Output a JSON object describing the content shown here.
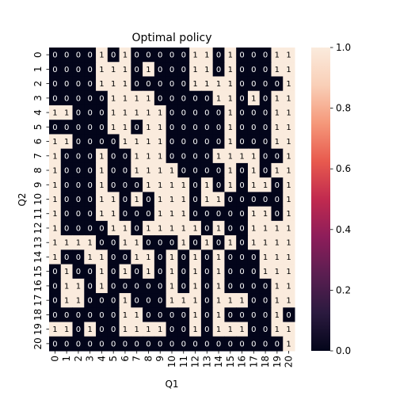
{
  "chart_data": {
    "type": "heatmap",
    "title": "Optimal policy",
    "xlabel": "Q1",
    "ylabel": "Q2",
    "x_categories": [
      "0",
      "1",
      "2",
      "3",
      "4",
      "5",
      "6",
      "7",
      "8",
      "9",
      "10",
      "11",
      "12",
      "13",
      "14",
      "15",
      "16",
      "17",
      "18",
      "19",
      "20"
    ],
    "y_categories": [
      "0",
      "1",
      "2",
      "3",
      "4",
      "5",
      "6",
      "7",
      "8",
      "9",
      "10",
      "11",
      "12",
      "13",
      "14",
      "15",
      "16",
      "17",
      "18",
      "19",
      "20"
    ],
    "annotated": true,
    "values": [
      [
        0,
        0,
        0,
        0,
        1,
        0,
        1,
        0,
        0,
        0,
        0,
        0,
        1,
        1,
        0,
        1,
        0,
        0,
        0,
        1,
        1
      ],
      [
        0,
        0,
        0,
        0,
        1,
        1,
        1,
        0,
        1,
        0,
        0,
        0,
        1,
        1,
        0,
        1,
        0,
        0,
        0,
        1,
        1
      ],
      [
        0,
        0,
        0,
        0,
        1,
        1,
        1,
        0,
        0,
        0,
        0,
        0,
        1,
        1,
        1,
        1,
        0,
        0,
        0,
        0,
        1
      ],
      [
        0,
        0,
        0,
        0,
        0,
        1,
        1,
        1,
        1,
        0,
        0,
        0,
        0,
        0,
        1,
        1,
        0,
        1,
        0,
        1,
        1
      ],
      [
        1,
        1,
        0,
        0,
        0,
        1,
        1,
        1,
        1,
        1,
        0,
        0,
        0,
        0,
        0,
        1,
        0,
        0,
        0,
        1,
        1
      ],
      [
        0,
        0,
        0,
        0,
        0,
        1,
        1,
        0,
        1,
        1,
        0,
        0,
        0,
        0,
        0,
        1,
        0,
        0,
        0,
        1,
        1
      ],
      [
        1,
        1,
        0,
        0,
        0,
        0,
        1,
        1,
        1,
        1,
        0,
        0,
        0,
        0,
        0,
        1,
        0,
        0,
        0,
        1,
        1
      ],
      [
        1,
        0,
        0,
        0,
        1,
        0,
        0,
        1,
        1,
        1,
        0,
        0,
        0,
        0,
        1,
        1,
        1,
        1,
        0,
        0,
        1
      ],
      [
        1,
        0,
        0,
        0,
        1,
        0,
        0,
        1,
        1,
        1,
        1,
        0,
        0,
        0,
        0,
        1,
        0,
        1,
        0,
        1,
        1
      ],
      [
        1,
        0,
        0,
        0,
        1,
        0,
        0,
        0,
        1,
        1,
        1,
        1,
        0,
        1,
        0,
        1,
        0,
        1,
        1,
        0,
        1
      ],
      [
        1,
        0,
        0,
        0,
        1,
        1,
        0,
        1,
        0,
        1,
        1,
        1,
        0,
        1,
        1,
        0,
        0,
        0,
        0,
        0,
        1
      ],
      [
        1,
        0,
        0,
        0,
        1,
        1,
        0,
        0,
        0,
        1,
        1,
        1,
        0,
        0,
        0,
        0,
        0,
        1,
        1,
        0,
        1
      ],
      [
        1,
        0,
        0,
        0,
        0,
        1,
        1,
        0,
        1,
        1,
        1,
        1,
        1,
        0,
        1,
        0,
        0,
        1,
        1,
        1,
        1
      ],
      [
        1,
        1,
        1,
        1,
        0,
        0,
        1,
        1,
        0,
        0,
        0,
        1,
        0,
        1,
        0,
        1,
        0,
        1,
        1,
        1,
        1
      ],
      [
        1,
        0,
        0,
        1,
        1,
        0,
        0,
        1,
        1,
        0,
        1,
        0,
        1,
        0,
        1,
        0,
        0,
        0,
        1,
        1,
        1
      ],
      [
        0,
        1,
        0,
        0,
        1,
        0,
        1,
        0,
        1,
        0,
        1,
        0,
        1,
        0,
        1,
        0,
        0,
        0,
        1,
        1,
        1
      ],
      [
        0,
        1,
        1,
        0,
        1,
        0,
        0,
        0,
        0,
        0,
        1,
        0,
        1,
        0,
        1,
        0,
        0,
        0,
        0,
        1,
        1
      ],
      [
        0,
        1,
        1,
        0,
        0,
        0,
        1,
        0,
        0,
        0,
        1,
        1,
        1,
        0,
        1,
        1,
        1,
        0,
        0,
        1,
        1
      ],
      [
        0,
        0,
        0,
        0,
        0,
        0,
        1,
        1,
        0,
        0,
        0,
        0,
        1,
        0,
        1,
        0,
        0,
        0,
        0,
        1,
        0
      ],
      [
        1,
        1,
        0,
        1,
        0,
        0,
        1,
        1,
        1,
        1,
        0,
        0,
        1,
        0,
        1,
        1,
        1,
        0,
        0,
        1,
        1
      ],
      [
        0,
        0,
        0,
        0,
        0,
        0,
        0,
        0,
        0,
        0,
        0,
        0,
        0,
        0,
        0,
        0,
        0,
        0,
        0,
        0,
        1
      ]
    ],
    "colorbar": {
      "range": [
        0.0,
        1.0
      ],
      "ticks": [
        "0.0",
        "0.2",
        "0.4",
        "0.6",
        "0.8",
        "1.0"
      ],
      "colormap": "rocket",
      "stops": [
        "#03051a",
        "#2b1a3f",
        "#5a1e51",
        "#8d1d5a",
        "#c12a4f",
        "#e85a4e",
        "#f5987a",
        "#f9cfb7",
        "#faebdd"
      ]
    },
    "colors": {
      "zero_cell": "#03051a",
      "one_cell": "#faebdd",
      "zero_text": "#ffffff",
      "one_text": "#000000"
    }
  }
}
